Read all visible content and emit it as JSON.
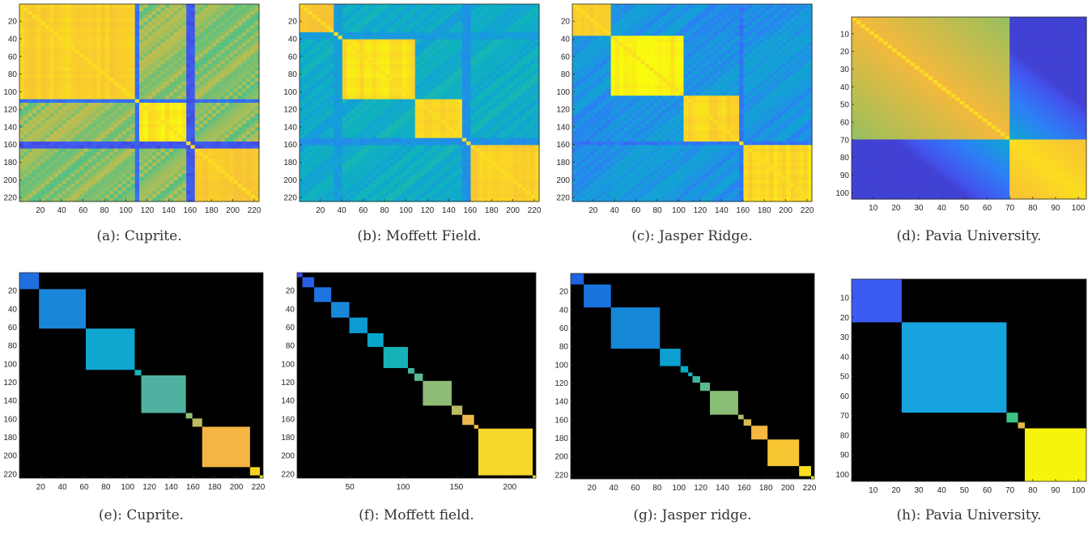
{
  "chart_data": [
    {
      "type": "heatmap",
      "id": "a",
      "caption": "(a): Cuprite.",
      "size": 224,
      "kind": "sim",
      "seed": 11,
      "xticks": [
        20,
        40,
        60,
        80,
        100,
        120,
        140,
        160,
        180,
        200,
        220
      ],
      "yticks": [
        20,
        40,
        60,
        80,
        100,
        120,
        140,
        160,
        180,
        200,
        220
      ],
      "groups": [
        {
          "start": 1,
          "end": 108,
          "level": 0.92
        },
        {
          "start": 109,
          "end": 111,
          "level": 0.18
        },
        {
          "start": 112,
          "end": 156,
          "level": 0.97
        },
        {
          "start": 157,
          "end": 163,
          "level": 0.1
        },
        {
          "start": 164,
          "end": 224,
          "level": 0.9
        }
      ],
      "narrow_bands": [
        {
          "start": 157,
          "end": 163,
          "level": 0.1
        },
        {
          "start": 109,
          "end": 111,
          "level": 0.18
        }
      ]
    },
    {
      "type": "heatmap",
      "id": "b",
      "caption": "(b): Moffett Field.",
      "size": 224,
      "kind": "sim",
      "seed": 23,
      "xticks": [
        20,
        40,
        60,
        80,
        100,
        120,
        140,
        160,
        180,
        200,
        220
      ],
      "yticks": [
        20,
        40,
        60,
        80,
        100,
        120,
        140,
        160,
        180,
        200,
        220
      ],
      "groups": [
        {
          "start": 1,
          "end": 35,
          "level": 0.88
        },
        {
          "start": 36,
          "end": 108,
          "level": 0.95
        },
        {
          "start": 109,
          "end": 160,
          "level": 0.93
        },
        {
          "start": 161,
          "end": 224,
          "level": 0.92
        }
      ],
      "cross_level": 0.45,
      "narrow_bands": [
        {
          "start": 35,
          "end": 38,
          "level": 0.35
        },
        {
          "start": 155,
          "end": 158,
          "level": 0.3
        }
      ]
    },
    {
      "type": "heatmap",
      "id": "c",
      "caption": "(c): Jasper Ridge.",
      "size": 224,
      "kind": "sim",
      "seed": 37,
      "xticks": [
        20,
        40,
        60,
        80,
        100,
        120,
        140,
        160,
        180,
        200,
        220
      ],
      "yticks": [
        20,
        40,
        60,
        80,
        100,
        120,
        140,
        160,
        180,
        200,
        220
      ],
      "groups": [
        {
          "start": 1,
          "end": 37,
          "level": 0.9
        },
        {
          "start": 38,
          "end": 106,
          "level": 0.98
        },
        {
          "start": 107,
          "end": 160,
          "level": 0.93
        },
        {
          "start": 161,
          "end": 224,
          "level": 0.94
        }
      ],
      "cross_level": 0.32,
      "narrow_bands": [
        {
          "start": 157,
          "end": 161,
          "level": 0.2
        }
      ]
    },
    {
      "type": "heatmap",
      "id": "d",
      "caption": "(d): Pavia University.",
      "size": 103,
      "kind": "sim",
      "seed": 41,
      "xticks": [
        10,
        20,
        30,
        40,
        50,
        60,
        70,
        80,
        90,
        100
      ],
      "yticks": [
        10,
        20,
        30,
        40,
        50,
        60,
        70,
        80,
        90,
        100
      ],
      "groups": [
        {
          "start": 1,
          "end": 71,
          "level": 0.86
        },
        {
          "start": 72,
          "end": 103,
          "level": 0.95
        }
      ],
      "cross_level": 0.08,
      "smooth": true,
      "narrow_bands": []
    },
    {
      "type": "heatmap",
      "id": "e",
      "caption": "(e): Cuprite.",
      "size": 224,
      "kind": "block",
      "xticks": [
        20,
        40,
        60,
        80,
        100,
        120,
        140,
        160,
        180,
        200,
        220
      ],
      "yticks": [
        20,
        40,
        60,
        80,
        100,
        120,
        140,
        160,
        180,
        200,
        220
      ],
      "blocks": [
        {
          "start": 1,
          "end": 18,
          "color": "#1f6fe0"
        },
        {
          "start": 19,
          "end": 61,
          "color": "#1a86d8"
        },
        {
          "start": 62,
          "end": 106,
          "color": "#0fa6cf"
        },
        {
          "start": 107,
          "end": 112,
          "color": "#14b1bd"
        },
        {
          "start": 113,
          "end": 153,
          "color": "#4fb2a0"
        },
        {
          "start": 154,
          "end": 159,
          "color": "#8ebf74"
        },
        {
          "start": 160,
          "end": 168,
          "color": "#bdbc63"
        },
        {
          "start": 169,
          "end": 212,
          "color": "#f5b542"
        },
        {
          "start": 213,
          "end": 221,
          "color": "#f6d21e"
        },
        {
          "start": 222,
          "end": 224,
          "color": "#f9fb0e"
        }
      ]
    },
    {
      "type": "heatmap",
      "id": "f",
      "caption": "(f): Moffett field.",
      "size": 224,
      "kind": "block",
      "xticks": [
        50,
        100,
        150,
        200
      ],
      "yticks": [
        20,
        40,
        60,
        80,
        100,
        120,
        140,
        160,
        180,
        200,
        220
      ],
      "blocks": [
        {
          "start": 1,
          "end": 5,
          "color": "#3a4be8"
        },
        {
          "start": 6,
          "end": 16,
          "color": "#2560e6"
        },
        {
          "start": 17,
          "end": 32,
          "color": "#1d74de"
        },
        {
          "start": 33,
          "end": 49,
          "color": "#1889d8"
        },
        {
          "start": 50,
          "end": 66,
          "color": "#0e9bd4"
        },
        {
          "start": 67,
          "end": 81,
          "color": "#07a8cb"
        },
        {
          "start": 82,
          "end": 104,
          "color": "#17b2b8"
        },
        {
          "start": 105,
          "end": 110,
          "color": "#3cb8a2"
        },
        {
          "start": 111,
          "end": 118,
          "color": "#5aba8e"
        },
        {
          "start": 119,
          "end": 145,
          "color": "#8fbc76"
        },
        {
          "start": 146,
          "end": 155,
          "color": "#b9bc62"
        },
        {
          "start": 156,
          "end": 166,
          "color": "#e8b84a"
        },
        {
          "start": 167,
          "end": 170,
          "color": "#f7c33d"
        },
        {
          "start": 171,
          "end": 221,
          "color": "#f6d72a"
        },
        {
          "start": 222,
          "end": 224,
          "color": "#f9fb0e"
        }
      ]
    },
    {
      "type": "heatmap",
      "id": "g",
      "caption": "(g): Jasper ridge.",
      "size": 224,
      "kind": "block",
      "xticks": [
        20,
        40,
        60,
        80,
        100,
        120,
        140,
        160,
        180,
        200,
        220
      ],
      "yticks": [
        20,
        40,
        60,
        80,
        100,
        120,
        140,
        160,
        180,
        200,
        220
      ],
      "blocks": [
        {
          "start": 1,
          "end": 12,
          "color": "#1f62e4"
        },
        {
          "start": 13,
          "end": 37,
          "color": "#1a74de"
        },
        {
          "start": 38,
          "end": 82,
          "color": "#1686d6"
        },
        {
          "start": 83,
          "end": 101,
          "color": "#0c9fd0"
        },
        {
          "start": 102,
          "end": 108,
          "color": "#07a9c8"
        },
        {
          "start": 109,
          "end": 112,
          "color": "#15b0bd"
        },
        {
          "start": 113,
          "end": 119,
          "color": "#3ab8a3"
        },
        {
          "start": 120,
          "end": 128,
          "color": "#5cb98e"
        },
        {
          "start": 129,
          "end": 154,
          "color": "#8abd76"
        },
        {
          "start": 155,
          "end": 159,
          "color": "#b1bd66"
        },
        {
          "start": 160,
          "end": 166,
          "color": "#d8ba52"
        },
        {
          "start": 167,
          "end": 181,
          "color": "#f4b744"
        },
        {
          "start": 182,
          "end": 210,
          "color": "#f8c532"
        },
        {
          "start": 211,
          "end": 221,
          "color": "#f7e01f"
        },
        {
          "start": 222,
          "end": 224,
          "color": "#f9fb0e"
        }
      ]
    },
    {
      "type": "heatmap",
      "id": "h",
      "caption": "(h): Pavia University.",
      "size": 103,
      "kind": "block",
      "xticks": [
        10,
        20,
        30,
        40,
        50,
        60,
        70,
        80,
        90,
        100
      ],
      "yticks": [
        10,
        20,
        30,
        40,
        50,
        60,
        70,
        80,
        90,
        100
      ],
      "blocks": [
        {
          "start": 1,
          "end": 22,
          "color": "#3b5cf2"
        },
        {
          "start": 23,
          "end": 68,
          "color": "#17a3dd"
        },
        {
          "start": 69,
          "end": 73,
          "color": "#3cc487"
        },
        {
          "start": 74,
          "end": 76,
          "color": "#e2b947"
        },
        {
          "start": 77,
          "end": 103,
          "color": "#f7f30d"
        }
      ]
    }
  ]
}
